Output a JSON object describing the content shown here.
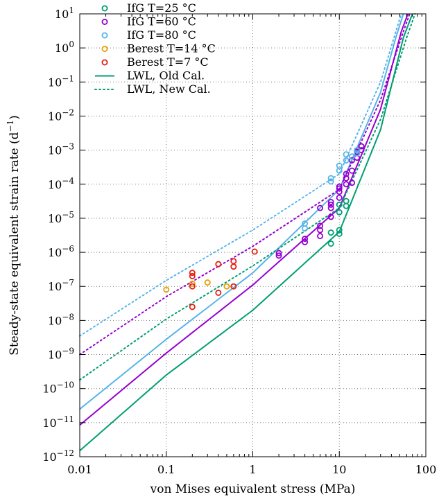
{
  "chart_data": {
    "type": "scatter",
    "title": "",
    "xlabel": "von Mises equivalent stress (MPa)",
    "ylabel_main": "Steady-state equivalent strain rate (d",
    "ylabel_exp": "−1",
    "ylabel_close": ")",
    "x_scale": "log",
    "y_scale": "log",
    "xlim": [
      0.01,
      100
    ],
    "ylim": [
      1e-12,
      10
    ],
    "grid": true,
    "legend_position": "top-left",
    "x_ticks": [
      {
        "value": 0.01,
        "label": "0.01"
      },
      {
        "value": 0.1,
        "label": "0.1"
      },
      {
        "value": 1,
        "label": "1"
      },
      {
        "value": 10,
        "label": "10"
      },
      {
        "value": 100,
        "label": "100"
      }
    ],
    "y_ticks": [
      {
        "value": 1e-12,
        "base": "10",
        "exp": "−12"
      },
      {
        "value": 1e-11,
        "base": "10",
        "exp": "−11"
      },
      {
        "value": 1e-10,
        "base": "10",
        "exp": "−10"
      },
      {
        "value": 1e-09,
        "base": "10",
        "exp": "−9"
      },
      {
        "value": 1e-08,
        "base": "10",
        "exp": "−8"
      },
      {
        "value": 1e-07,
        "base": "10",
        "exp": "−7"
      },
      {
        "value": 1e-06,
        "base": "10",
        "exp": "−6"
      },
      {
        "value": 1e-05,
        "base": "10",
        "exp": "−5"
      },
      {
        "value": 0.0001,
        "base": "10",
        "exp": "−4"
      },
      {
        "value": 0.001,
        "base": "10",
        "exp": "−3"
      },
      {
        "value": 0.01,
        "base": "10",
        "exp": "−2"
      },
      {
        "value": 0.1,
        "base": "10",
        "exp": "−1"
      },
      {
        "value": 1,
        "base": "10",
        "exp": "0"
      },
      {
        "value": 10,
        "base": "10",
        "exp": "1"
      }
    ],
    "scatter_series": [
      {
        "name": "IfG T=25 °C",
        "color": "#009e73",
        "points": [
          [
            8,
            1.8e-06
          ],
          [
            8,
            3.8e-06
          ],
          [
            10,
            3.5e-06
          ],
          [
            10,
            4.5e-06
          ],
          [
            10,
            1.5e-05
          ],
          [
            10,
            2.5e-05
          ],
          [
            12,
            2.3e-05
          ],
          [
            12,
            3.2e-05
          ]
        ]
      },
      {
        "name": "IfG T=60 °C",
        "color": "#9400d3",
        "points": [
          [
            2,
            8e-07
          ],
          [
            2,
            9.5e-07
          ],
          [
            4,
            2e-06
          ],
          [
            4,
            2.5e-06
          ],
          [
            6,
            3e-06
          ],
          [
            6,
            4.5e-06
          ],
          [
            6,
            6e-06
          ],
          [
            6,
            2e-05
          ],
          [
            8,
            1.1e-05
          ],
          [
            8,
            2e-05
          ],
          [
            8,
            2.5e-05
          ],
          [
            8,
            3e-05
          ],
          [
            10,
            4e-05
          ],
          [
            10,
            6e-05
          ],
          [
            10,
            7.5e-05
          ],
          [
            10,
            8.5e-05
          ],
          [
            12,
            0.0001
          ],
          [
            12,
            0.00015
          ],
          [
            12,
            0.0002
          ],
          [
            14,
            0.00011
          ],
          [
            14,
            0.00025
          ],
          [
            14,
            0.0005
          ],
          [
            16,
            0.0006
          ],
          [
            16,
            0.0009
          ],
          [
            18,
            0.001
          ],
          [
            18,
            0.0013
          ]
        ]
      },
      {
        "name": "IfG T=80 °C",
        "color": "#56b4e9",
        "points": [
          [
            4,
            5e-06
          ],
          [
            4,
            7e-06
          ],
          [
            8,
            0.00012
          ],
          [
            8,
            0.00015
          ],
          [
            10,
            0.00025
          ],
          [
            10,
            0.00035
          ],
          [
            12,
            0.0005
          ],
          [
            12,
            0.00075
          ],
          [
            14,
            0.00065
          ],
          [
            16,
            0.0008
          ],
          [
            16,
            0.001
          ]
        ]
      },
      {
        "name": "Berest T=14 °C",
        "color": "#e69f00",
        "points": [
          [
            0.1,
            8e-08
          ],
          [
            0.2,
            1.2e-07
          ],
          [
            0.3,
            1.3e-07
          ],
          [
            0.5,
            1e-07
          ]
        ]
      },
      {
        "name": "Berest T=7 °C",
        "color": "#e51e10",
        "points": [
          [
            0.2,
            2.5e-08
          ],
          [
            0.2,
            1e-07
          ],
          [
            0.2,
            2e-07
          ],
          [
            0.2,
            2.5e-07
          ],
          [
            0.4,
            6.5e-08
          ],
          [
            0.4,
            4.5e-07
          ],
          [
            0.6,
            1e-07
          ],
          [
            0.6,
            3.8e-07
          ],
          [
            0.6,
            5.5e-07
          ],
          [
            1.05,
            1.05e-06
          ]
        ]
      }
    ],
    "line_series": [
      {
        "name": "LWL, Old Cal.",
        "color": "#009e73",
        "style": "solid",
        "points": [
          [
            0.01,
            1.5e-12
          ],
          [
            0.1,
            2.5e-10
          ],
          [
            1,
            2e-08
          ],
          [
            10,
            4e-06
          ],
          [
            30,
            0.004
          ],
          [
            55,
            2
          ],
          [
            70,
            10
          ]
        ]
      },
      {
        "name": "LWL, Old Cal.",
        "color": "#9400d3",
        "style": "solid",
        "points": [
          [
            0.01,
            8.5e-12
          ],
          [
            0.1,
            1.1e-09
          ],
          [
            1,
            1.1e-07
          ],
          [
            10,
            2e-05
          ],
          [
            30,
            0.016
          ],
          [
            52,
            3
          ],
          [
            62,
            10
          ]
        ]
      },
      {
        "name": "LWL, Old Cal.",
        "color": "#56b4e9",
        "style": "solid",
        "points": [
          [
            0.01,
            2.5e-11
          ],
          [
            0.1,
            2.8e-09
          ],
          [
            1,
            2.5e-07
          ],
          [
            10,
            7e-05
          ],
          [
            30,
            0.05
          ],
          [
            45,
            2
          ],
          [
            55,
            10
          ]
        ]
      },
      {
        "name": "LWL, New Cal.",
        "color": "#009e73",
        "style": "dotted",
        "points": [
          [
            0.01,
            1.8e-10
          ],
          [
            0.1,
            1.1e-08
          ],
          [
            1,
            4e-07
          ],
          [
            10,
            2e-05
          ],
          [
            30,
            0.008
          ],
          [
            60,
            2
          ],
          [
            75,
            10
          ]
        ]
      },
      {
        "name": "LWL, New Cal.",
        "color": "#9400d3",
        "style": "dotted",
        "points": [
          [
            0.01,
            1e-09
          ],
          [
            0.1,
            5e-08
          ],
          [
            1,
            1.5e-06
          ],
          [
            10,
            7e-05
          ],
          [
            30,
            0.03
          ],
          [
            55,
            3
          ],
          [
            65,
            10
          ]
        ]
      },
      {
        "name": "LWL, New Cal.",
        "color": "#56b4e9",
        "style": "dotted",
        "points": [
          [
            0.01,
            3.5e-09
          ],
          [
            0.1,
            1.5e-07
          ],
          [
            1,
            4.5e-06
          ],
          [
            10,
            0.0002
          ],
          [
            30,
            0.1
          ],
          [
            45,
            3
          ],
          [
            52,
            10
          ]
        ]
      }
    ],
    "legend": [
      {
        "label": "IfG T=25 °C",
        "kind": "marker",
        "color": "#009e73"
      },
      {
        "label": "IfG T=60 °C",
        "kind": "marker",
        "color": "#9400d3"
      },
      {
        "label": "IfG T=80 °C",
        "kind": "marker",
        "color": "#56b4e9"
      },
      {
        "label": "Berest T=14 °C",
        "kind": "marker",
        "color": "#e69f00"
      },
      {
        "label": "Berest T=7 °C",
        "kind": "marker",
        "color": "#e51e10"
      },
      {
        "label": "LWL, Old Cal.",
        "kind": "solid",
        "color": "#009e73"
      },
      {
        "label": "LWL, New Cal.",
        "kind": "dotted",
        "color": "#009e73"
      }
    ]
  }
}
